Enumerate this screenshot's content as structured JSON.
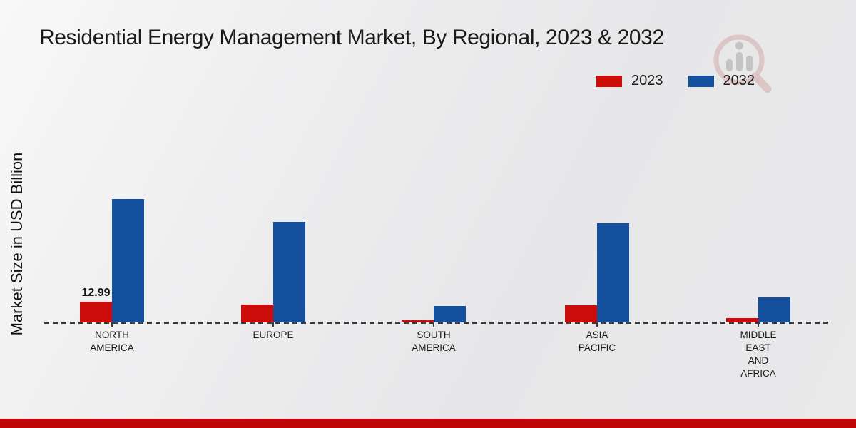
{
  "page": {
    "title": "Residential Energy Management Market, By Regional, 2023 & 2032",
    "ylabel": "Market Size in USD Billion"
  },
  "legend": {
    "items": [
      {
        "label": "2023",
        "color": "#cc0b0b"
      },
      {
        "label": "2032",
        "color": "#15509e"
      }
    ]
  },
  "watermark_icon": "magnifier-bar-chart-logo",
  "footer": {
    "bar_color": "#c00606"
  },
  "chart_data": {
    "type": "bar",
    "title": "Residential Energy Management Market, By Regional, 2023 & 2032",
    "xlabel": "",
    "ylabel": "Market Size in USD Billion",
    "categories": [
      "NORTH AMERICA",
      "EUROPE",
      "SOUTH AMERICA",
      "ASIA PACIFIC",
      "MIDDLE EAST AND AFRICA"
    ],
    "category_display_lines": [
      [
        "NORTH",
        "AMERICA"
      ],
      [
        "EUROPE"
      ],
      [
        "SOUTH",
        "AMERICA"
      ],
      [
        "ASIA",
        "PACIFIC"
      ],
      [
        "MIDDLE",
        "EAST",
        "AND",
        "AFRICA"
      ]
    ],
    "series": [
      {
        "name": "2023",
        "color": "#cc0b0b",
        "values": [
          12.99,
          11.5,
          1.2,
          11.0,
          2.6
        ]
      },
      {
        "name": "2032",
        "color": "#15509e",
        "values": [
          78.5,
          64.0,
          10.5,
          63.0,
          16.0
        ]
      }
    ],
    "data_labels": [
      {
        "series_index": 0,
        "category_index": 0,
        "text": "12.99"
      }
    ],
    "ylim": [
      0,
      85
    ],
    "grid": false,
    "axis_style": "dashed-baseline",
    "legend_position": "top-right"
  }
}
